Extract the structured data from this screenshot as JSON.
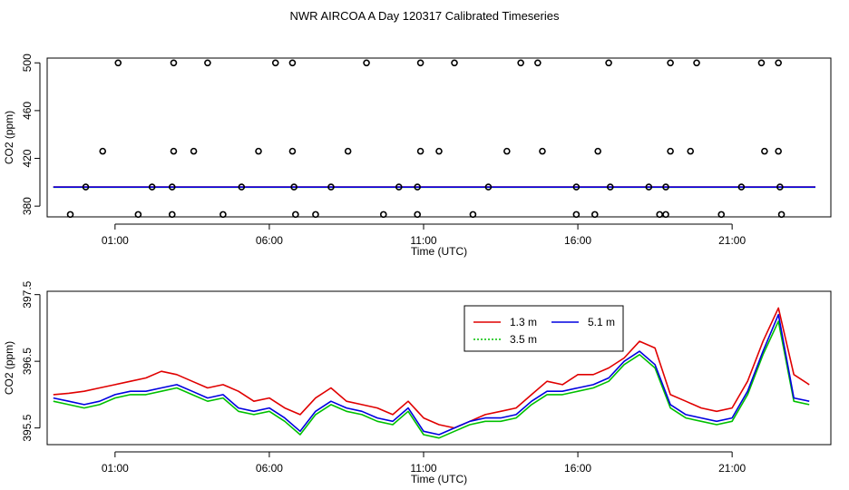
{
  "title": "NWR AIRCOA A  Day 120317  Calibrated Timeseries",
  "colors": {
    "s13": "#e00000",
    "s35": "#00c000",
    "s51": "#0000e0",
    "points": "#000000",
    "axis": "#000000"
  },
  "chart_data": [
    {
      "type": "scatter",
      "xlabel": "Time (UTC)",
      "ylabel": "CO2 (ppm)",
      "xlim": [
        -1.2,
        24.2
      ],
      "ylim": [
        371,
        504
      ],
      "xticks": [
        1,
        6,
        11,
        16,
        21
      ],
      "xtick_labels": [
        "01:00",
        "06:00",
        "11:00",
        "16:00",
        "21:00"
      ],
      "yticks": [
        380,
        420,
        460,
        500
      ],
      "ytick_labels": [
        "380",
        "420",
        "460",
        "500"
      ],
      "points": [
        [
          1.1,
          500
        ],
        [
          2.9,
          500
        ],
        [
          4.0,
          500
        ],
        [
          6.2,
          500
        ],
        [
          6.75,
          500
        ],
        [
          9.15,
          500
        ],
        [
          10.9,
          500
        ],
        [
          12.0,
          500
        ],
        [
          14.15,
          500
        ],
        [
          14.7,
          500
        ],
        [
          17.0,
          500
        ],
        [
          19.0,
          500
        ],
        [
          19.85,
          500
        ],
        [
          21.95,
          500
        ],
        [
          22.5,
          500
        ],
        [
          0.6,
          426
        ],
        [
          2.9,
          426
        ],
        [
          3.55,
          426
        ],
        [
          5.65,
          426
        ],
        [
          6.75,
          426
        ],
        [
          8.55,
          426
        ],
        [
          10.9,
          426
        ],
        [
          11.5,
          426
        ],
        [
          13.7,
          426
        ],
        [
          14.85,
          426
        ],
        [
          16.65,
          426
        ],
        [
          19.0,
          426
        ],
        [
          19.65,
          426
        ],
        [
          22.05,
          426
        ],
        [
          22.5,
          426
        ],
        [
          0.05,
          396
        ],
        [
          2.2,
          396
        ],
        [
          2.85,
          396
        ],
        [
          5.1,
          396
        ],
        [
          6.8,
          396
        ],
        [
          8.0,
          396
        ],
        [
          10.2,
          396
        ],
        [
          10.8,
          396
        ],
        [
          13.1,
          396
        ],
        [
          15.95,
          396
        ],
        [
          17.05,
          396
        ],
        [
          18.3,
          396
        ],
        [
          18.85,
          396
        ],
        [
          21.3,
          396
        ],
        [
          22.55,
          396
        ],
        [
          -0.45,
          373
        ],
        [
          1.75,
          373
        ],
        [
          2.85,
          373
        ],
        [
          4.5,
          373
        ],
        [
          6.85,
          373
        ],
        [
          7.5,
          373
        ],
        [
          9.7,
          373
        ],
        [
          10.8,
          373
        ],
        [
          12.6,
          373
        ],
        [
          15.95,
          373
        ],
        [
          16.55,
          373
        ],
        [
          18.65,
          373
        ],
        [
          18.85,
          373
        ],
        [
          20.65,
          373
        ],
        [
          22.6,
          373
        ]
      ],
      "series": [
        {
          "name": "1.3 m",
          "value": 396.0
        },
        {
          "name": "3.5 m",
          "value": 395.8
        },
        {
          "name": "5.1 m",
          "value": 395.9
        }
      ]
    },
    {
      "type": "line",
      "xlabel": "Time (UTC)",
      "ylabel": "CO2 (ppm)",
      "xlim": [
        -1.2,
        24.2
      ],
      "ylim": [
        395.25,
        397.55
      ],
      "xticks": [
        1,
        6,
        11,
        16,
        21
      ],
      "xtick_labels": [
        "01:00",
        "06:00",
        "11:00",
        "16:00",
        "21:00"
      ],
      "yticks": [
        395.5,
        396.5,
        397.5
      ],
      "ytick_labels": [
        "395.5",
        "396.5",
        "397.5"
      ],
      "legend": "top-center",
      "x": [
        -1,
        -0.5,
        0,
        0.5,
        1,
        1.5,
        2,
        2.5,
        3,
        3.5,
        4,
        4.5,
        5,
        5.5,
        6,
        6.5,
        7,
        7.5,
        8,
        8.5,
        9,
        9.5,
        10,
        10.5,
        11,
        11.5,
        12,
        12.5,
        13,
        13.5,
        14,
        14.5,
        15,
        15.5,
        16,
        16.5,
        17,
        17.5,
        18,
        18.5,
        19,
        19.5,
        20,
        20.5,
        21,
        21.5,
        22,
        22.5,
        23,
        23.5
      ],
      "series": [
        {
          "name": "1.3 m",
          "values": [
            396.0,
            396.02,
            396.05,
            396.1,
            396.15,
            396.2,
            396.25,
            396.35,
            396.3,
            396.2,
            396.1,
            396.15,
            396.05,
            395.9,
            395.95,
            395.8,
            395.7,
            395.95,
            396.1,
            395.9,
            395.85,
            395.8,
            395.7,
            395.9,
            395.65,
            395.55,
            395.5,
            395.6,
            395.7,
            395.75,
            395.8,
            396.0,
            396.2,
            396.15,
            396.3,
            396.3,
            396.4,
            396.55,
            396.8,
            396.7,
            396.0,
            395.9,
            395.8,
            395.75,
            395.8,
            396.2,
            396.8,
            397.3,
            396.3,
            396.15
          ]
        },
        {
          "name": "3.5 m",
          "values": [
            395.9,
            395.85,
            395.8,
            395.85,
            395.95,
            396.0,
            396.0,
            396.05,
            396.1,
            396.0,
            395.9,
            395.95,
            395.75,
            395.7,
            395.75,
            395.6,
            395.4,
            395.7,
            395.85,
            395.75,
            395.7,
            395.6,
            395.55,
            395.75,
            395.4,
            395.35,
            395.45,
            395.55,
            395.6,
            395.6,
            395.65,
            395.85,
            396.0,
            396.0,
            396.05,
            396.1,
            396.2,
            396.45,
            396.6,
            396.4,
            395.8,
            395.65,
            395.6,
            395.55,
            395.6,
            396.0,
            396.6,
            397.1,
            395.9,
            395.85
          ]
        },
        {
          "name": "5.1 m",
          "values": [
            395.95,
            395.9,
            395.85,
            395.9,
            396.0,
            396.05,
            396.05,
            396.1,
            396.15,
            396.05,
            395.95,
            396.0,
            395.8,
            395.75,
            395.8,
            395.65,
            395.45,
            395.75,
            395.9,
            395.8,
            395.75,
            395.65,
            395.6,
            395.8,
            395.45,
            395.4,
            395.5,
            395.6,
            395.65,
            395.65,
            395.7,
            395.9,
            396.05,
            396.05,
            396.1,
            396.15,
            396.25,
            396.5,
            396.65,
            396.45,
            395.85,
            395.7,
            395.65,
            395.6,
            395.65,
            396.05,
            396.65,
            397.2,
            395.95,
            395.9
          ]
        }
      ]
    }
  ]
}
